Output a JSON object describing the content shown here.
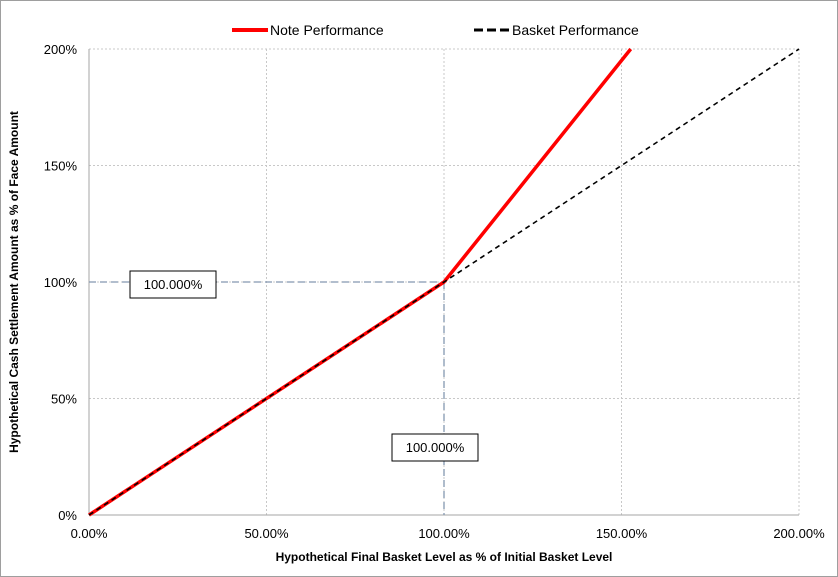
{
  "chart_data": {
    "type": "line",
    "xlabel": "Hypothetical Final Basket Level as % of Initial Basket Level",
    "ylabel": "Hypothetical Cash Settlement Amount as % of Face Amount",
    "x_ticks": [
      0,
      50,
      100,
      150,
      200
    ],
    "x_tick_labels": [
      "0.00%",
      "50.00%",
      "100.00%",
      "150.00%",
      "200.00%"
    ],
    "y_ticks": [
      0,
      50,
      100,
      150,
      200
    ],
    "y_tick_labels": [
      "0%",
      "50%",
      "100%",
      "150%",
      "200%"
    ],
    "xlim": [
      0,
      200
    ],
    "ylim": [
      0,
      200
    ],
    "grid": true,
    "legend_position": "top",
    "series": [
      {
        "name": "Note Performance",
        "color": "#ff0000",
        "style": "solid",
        "x": [
          0,
          100,
          152.6
        ],
        "y": [
          0,
          100,
          200
        ]
      },
      {
        "name": "Basket Performance",
        "color": "#000000",
        "style": "dashed",
        "x": [
          0,
          200
        ],
        "y": [
          0,
          200
        ]
      }
    ],
    "reference_point": {
      "x": 100,
      "y": 100,
      "color": "#8497b0"
    },
    "annotations": [
      {
        "text": "100.000%",
        "axis": "y",
        "value": 100
      },
      {
        "text": "100.000%",
        "axis": "x",
        "value": 100
      }
    ]
  }
}
